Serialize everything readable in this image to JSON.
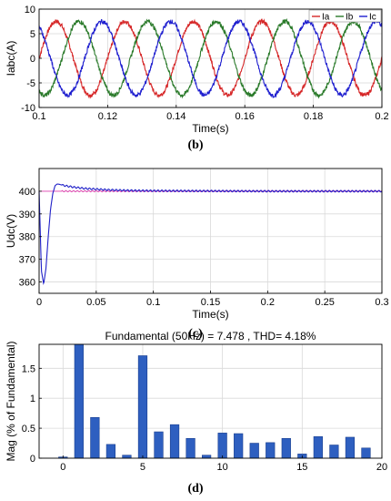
{
  "chart_data": [
    {
      "panel": "(b)",
      "type": "line",
      "xlabel": "Time(s)",
      "ylabel": "Iabc(A)",
      "xlim": [
        0.1,
        0.2
      ],
      "ylim": [
        -10,
        10
      ],
      "xticks": [
        "0.1",
        "0.12",
        "0.14",
        "0.16",
        "0.18",
        "0.2"
      ],
      "yticks": [
        "-10",
        "-5",
        "0",
        "5",
        "10"
      ],
      "grid": true,
      "legend_position": "top-right",
      "signal": {
        "frequency_hz": 50,
        "amplitude": 7.5,
        "phase_shift_deg": 120
      },
      "series": [
        {
          "name": "Ia",
          "color": "#d62728",
          "phase_deg": 0
        },
        {
          "name": "Ib",
          "color": "#2a7a2a",
          "phase_deg": -120
        },
        {
          "name": "Ic",
          "color": "#1f1fcf",
          "phase_deg": 120
        }
      ]
    },
    {
      "panel": "(c)",
      "type": "line",
      "xlabel": "Time(s)",
      "ylabel": "Udc(V)",
      "xlim": [
        0,
        0.3
      ],
      "ylim": [
        355,
        410
      ],
      "xticks": [
        "0",
        "0.05",
        "0.1",
        "0.15",
        "0.2",
        "0.25",
        "0.3"
      ],
      "yticks": [
        "360",
        "370",
        "380",
        "390",
        "400"
      ],
      "grid": true,
      "series": [
        {
          "color": "#2020c8",
          "x": [
            0,
            0.002,
            0.004,
            0.006,
            0.008,
            0.01,
            0.012,
            0.014,
            0.016,
            0.018,
            0.02,
            0.025,
            0.03,
            0.04,
            0.05,
            0.06,
            0.08,
            0.1,
            0.15,
            0.2,
            0.25,
            0.3
          ],
          "y": [
            400,
            365,
            359,
            366,
            380,
            392,
            399,
            402.5,
            403.2,
            403,
            402.7,
            402.2,
            401.8,
            401.2,
            400.9,
            400.6,
            400.3,
            400.2,
            400.1,
            400,
            400,
            400
          ]
        }
      ]
    },
    {
      "panel": "(d)",
      "type": "bar",
      "title": "Fundamental (50Hz) = 7.478 , THD= 4.18%",
      "ylabel": "Mag (% of Fundamental)",
      "xlim": [
        -1.5,
        20
      ],
      "ylim": [
        0,
        1.9
      ],
      "xticks": [
        "0",
        "5",
        "10",
        "15",
        "20"
      ],
      "yticks": [
        "0",
        "0.5",
        "1",
        "1.5"
      ],
      "grid": true,
      "bar_color": "#2e5fc0",
      "categories": [
        0,
        1,
        2,
        3,
        4,
        5,
        6,
        7,
        8,
        9,
        10,
        11,
        12,
        13,
        14,
        15,
        16,
        17,
        18,
        19
      ],
      "values": [
        0.02,
        1.9,
        0.68,
        0.23,
        0.05,
        1.71,
        0.44,
        0.56,
        0.33,
        0.05,
        0.42,
        0.41,
        0.25,
        0.26,
        0.33,
        0.07,
        0.36,
        0.22,
        0.35,
        0.17
      ]
    }
  ],
  "captions": [
    "(b)",
    "(c)",
    "(d)"
  ]
}
